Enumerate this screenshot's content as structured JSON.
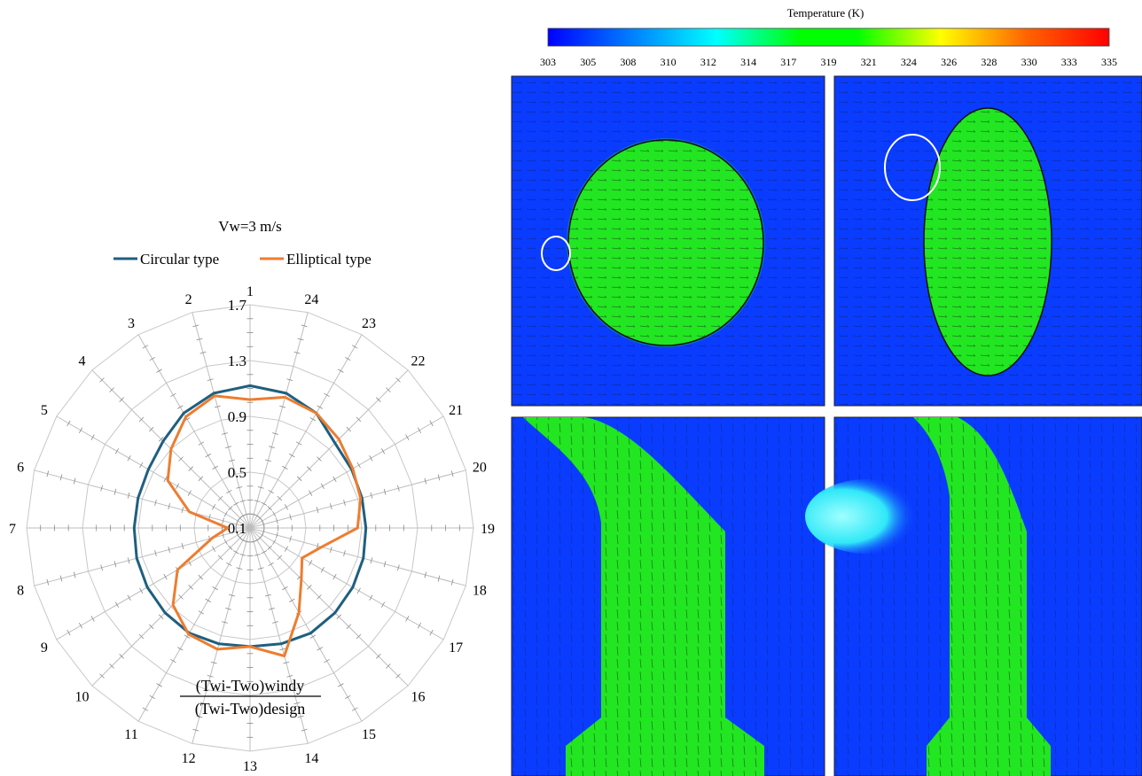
{
  "radar": {
    "title": "Vw=3 m/s",
    "legend": [
      "Circular type",
      "Elliptical type"
    ],
    "ylabel_numerator": "(Twi-Two)windy",
    "ylabel_denominator": "(Twi-Two)design",
    "ring_labels": [
      "0.1",
      "0.5",
      "0.9",
      "1.3",
      "1.7"
    ],
    "colors": {
      "circular": "#1f5f7f",
      "elliptical": "#ed7d31",
      "grid": "#c8c8c8",
      "axis": "#bdbdbd"
    }
  },
  "chart_data": [
    {
      "type": "radar",
      "title": "Vw=3 m/s",
      "categories": [
        "1",
        "2",
        "3",
        "4",
        "5",
        "6",
        "7",
        "8",
        "9",
        "10",
        "11",
        "12",
        "13",
        "14",
        "15",
        "16",
        "17",
        "18",
        "19",
        "20",
        "21",
        "22",
        "23",
        "24"
      ],
      "rlim": [
        0.1,
        1.7
      ],
      "ticks": [
        0.1,
        0.5,
        0.9,
        1.3,
        1.7
      ],
      "series": [
        {
          "name": "Circular type",
          "values": [
            1.12,
            1.1,
            1.05,
            0.98,
            0.94,
            0.93,
            0.93,
            0.94,
            0.95,
            0.96,
            0.97,
            0.96,
            0.95,
            0.96,
            0.97,
            0.96,
            0.95,
            0.94,
            0.93,
            0.93,
            0.94,
            0.96,
            1.05,
            1.1
          ]
        },
        {
          "name": "Elliptical type",
          "values": [
            1.02,
            1.08,
            1.02,
            0.9,
            0.78,
            0.55,
            0.26,
            0.38,
            0.7,
            0.88,
            0.98,
            1.0,
            0.95,
            1.05,
            0.8,
            0.62,
            0.53,
            0.63,
            0.87,
            0.92,
            0.95,
            1.0,
            1.05,
            1.07
          ]
        }
      ]
    },
    {
      "type": "heatmap",
      "title": "Temperature (K)",
      "colorbar_ticks": [
        "303",
        "305",
        "308",
        "310",
        "312",
        "314",
        "317",
        "319",
        "321",
        "324",
        "326",
        "328",
        "330",
        "333",
        "335"
      ],
      "range": [
        303,
        335
      ],
      "panels": [
        "circular-plan",
        "elliptical-plan",
        "circular-section",
        "elliptical-section"
      ]
    }
  ]
}
